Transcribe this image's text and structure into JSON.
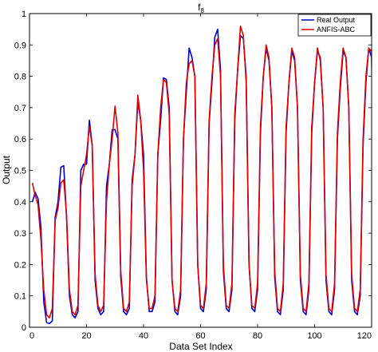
{
  "chart_data": {
    "type": "line",
    "title": "f",
    "title_subscript": "8",
    "xlabel": "Data Set Index",
    "ylabel": "Output",
    "xlim": [
      0,
      120
    ],
    "ylim": [
      0,
      1
    ],
    "xticks": [
      0,
      20,
      40,
      60,
      80,
      100,
      120
    ],
    "yticks": [
      0,
      0.1,
      0.2,
      0.3,
      0.4,
      0.5,
      0.6,
      0.7,
      0.8,
      0.9,
      1
    ],
    "xtick_labels": [
      "0",
      "20",
      "40",
      "60",
      "80",
      "100",
      "120"
    ],
    "ytick_labels": [
      "0",
      "0.1",
      "0.2",
      "0.3",
      "0.4",
      "0.5",
      "0.6",
      "0.7",
      "0.8",
      "0.9",
      "1"
    ],
    "grid": false,
    "legend_position": "top-right",
    "series": [
      {
        "name": "Real Output",
        "color": "#0000cc",
        "points": [
          [
            1,
            0.4
          ],
          [
            2,
            0.43
          ],
          [
            3,
            0.41
          ],
          [
            4,
            0.32
          ],
          [
            5,
            0.08
          ],
          [
            6,
            0.015
          ],
          [
            7,
            0.012
          ],
          [
            8,
            0.02
          ],
          [
            9,
            0.35
          ],
          [
            10,
            0.4
          ],
          [
            11,
            0.51
          ],
          [
            12,
            0.515
          ],
          [
            13,
            0.35
          ],
          [
            14,
            0.1
          ],
          [
            15,
            0.04
          ],
          [
            16,
            0.03
          ],
          [
            17,
            0.05
          ],
          [
            18,
            0.5
          ],
          [
            19,
            0.52
          ],
          [
            20,
            0.52
          ],
          [
            21,
            0.66
          ],
          [
            22,
            0.58
          ],
          [
            23,
            0.15
          ],
          [
            24,
            0.06
          ],
          [
            25,
            0.04
          ],
          [
            26,
            0.05
          ],
          [
            27,
            0.45
          ],
          [
            28,
            0.52
          ],
          [
            29,
            0.63
          ],
          [
            30,
            0.63
          ],
          [
            31,
            0.6
          ],
          [
            32,
            0.16
          ],
          [
            33,
            0.05
          ],
          [
            34,
            0.04
          ],
          [
            35,
            0.06
          ],
          [
            36,
            0.47
          ],
          [
            37,
            0.55
          ],
          [
            38,
            0.72
          ],
          [
            39,
            0.66
          ],
          [
            40,
            0.55
          ],
          [
            41,
            0.16
          ],
          [
            42,
            0.05
          ],
          [
            43,
            0.05
          ],
          [
            44,
            0.08
          ],
          [
            45,
            0.55
          ],
          [
            46,
            0.66
          ],
          [
            47,
            0.795
          ],
          [
            48,
            0.79
          ],
          [
            49,
            0.7
          ],
          [
            50,
            0.15
          ],
          [
            51,
            0.05
          ],
          [
            52,
            0.04
          ],
          [
            53,
            0.1
          ],
          [
            54,
            0.6
          ],
          [
            55,
            0.75
          ],
          [
            56,
            0.89
          ],
          [
            57,
            0.86
          ],
          [
            58,
            0.8
          ],
          [
            59,
            0.2
          ],
          [
            60,
            0.06
          ],
          [
            61,
            0.05
          ],
          [
            62,
            0.12
          ],
          [
            63,
            0.65
          ],
          [
            64,
            0.78
          ],
          [
            65,
            0.925
          ],
          [
            66,
            0.95
          ],
          [
            67,
            0.82
          ],
          [
            68,
            0.18
          ],
          [
            69,
            0.06
          ],
          [
            70,
            0.05
          ],
          [
            71,
            0.12
          ],
          [
            72,
            0.66
          ],
          [
            73,
            0.82
          ],
          [
            74,
            0.93
          ],
          [
            75,
            0.92
          ],
          [
            76,
            0.8
          ],
          [
            77,
            0.2
          ],
          [
            78,
            0.06
          ],
          [
            79,
            0.05
          ],
          [
            80,
            0.12
          ],
          [
            81,
            0.62
          ],
          [
            82,
            0.8
          ],
          [
            83,
            0.89
          ],
          [
            84,
            0.85
          ],
          [
            85,
            0.7
          ],
          [
            86,
            0.16
          ],
          [
            87,
            0.05
          ],
          [
            88,
            0.04
          ],
          [
            89,
            0.12
          ],
          [
            90,
            0.62
          ],
          [
            91,
            0.78
          ],
          [
            92,
            0.88
          ],
          [
            93,
            0.85
          ],
          [
            94,
            0.7
          ],
          [
            95,
            0.15
          ],
          [
            96,
            0.05
          ],
          [
            97,
            0.04
          ],
          [
            98,
            0.12
          ],
          [
            99,
            0.62
          ],
          [
            100,
            0.78
          ],
          [
            101,
            0.88
          ],
          [
            102,
            0.86
          ],
          [
            103,
            0.7
          ],
          [
            104,
            0.15
          ],
          [
            105,
            0.05
          ],
          [
            106,
            0.04
          ],
          [
            107,
            0.12
          ],
          [
            108,
            0.6
          ],
          [
            109,
            0.76
          ],
          [
            110,
            0.88
          ],
          [
            111,
            0.86
          ],
          [
            112,
            0.7
          ],
          [
            113,
            0.15
          ],
          [
            114,
            0.05
          ],
          [
            115,
            0.04
          ],
          [
            116,
            0.1
          ],
          [
            117,
            0.58
          ],
          [
            118,
            0.78
          ],
          [
            119,
            0.89
          ],
          [
            120,
            0.86
          ],
          [
            121,
            0.2
          ]
        ]
      },
      {
        "name": "ANFIS-ABC",
        "color": "#dd0000",
        "points": [
          [
            1,
            0.46
          ],
          [
            2,
            0.42
          ],
          [
            3,
            0.39
          ],
          [
            4,
            0.28
          ],
          [
            5,
            0.12
          ],
          [
            6,
            0.04
          ],
          [
            7,
            0.03
          ],
          [
            8,
            0.06
          ],
          [
            9,
            0.34
          ],
          [
            10,
            0.38
          ],
          [
            11,
            0.46
          ],
          [
            12,
            0.47
          ],
          [
            13,
            0.36
          ],
          [
            14,
            0.12
          ],
          [
            15,
            0.05
          ],
          [
            16,
            0.04
          ],
          [
            17,
            0.07
          ],
          [
            18,
            0.45
          ],
          [
            19,
            0.5
          ],
          [
            20,
            0.55
          ],
          [
            21,
            0.64
          ],
          [
            22,
            0.58
          ],
          [
            23,
            0.17
          ],
          [
            24,
            0.07
          ],
          [
            25,
            0.05
          ],
          [
            26,
            0.07
          ],
          [
            27,
            0.4
          ],
          [
            28,
            0.52
          ],
          [
            29,
            0.6
          ],
          [
            30,
            0.705
          ],
          [
            31,
            0.62
          ],
          [
            32,
            0.18
          ],
          [
            33,
            0.06
          ],
          [
            34,
            0.05
          ],
          [
            35,
            0.08
          ],
          [
            36,
            0.45
          ],
          [
            37,
            0.55
          ],
          [
            38,
            0.74
          ],
          [
            39,
            0.66
          ],
          [
            40,
            0.5
          ],
          [
            41,
            0.15
          ],
          [
            42,
            0.06
          ],
          [
            43,
            0.06
          ],
          [
            44,
            0.1
          ],
          [
            45,
            0.55
          ],
          [
            46,
            0.7
          ],
          [
            47,
            0.79
          ],
          [
            48,
            0.78
          ],
          [
            49,
            0.68
          ],
          [
            50,
            0.15
          ],
          [
            51,
            0.06
          ],
          [
            52,
            0.05
          ],
          [
            53,
            0.12
          ],
          [
            54,
            0.6
          ],
          [
            55,
            0.78
          ],
          [
            56,
            0.84
          ],
          [
            57,
            0.85
          ],
          [
            58,
            0.8
          ],
          [
            59,
            0.2
          ],
          [
            60,
            0.07
          ],
          [
            61,
            0.06
          ],
          [
            62,
            0.14
          ],
          [
            63,
            0.66
          ],
          [
            64,
            0.8
          ],
          [
            65,
            0.9
          ],
          [
            66,
            0.92
          ],
          [
            67,
            0.8
          ],
          [
            68,
            0.2
          ],
          [
            69,
            0.07
          ],
          [
            70,
            0.06
          ],
          [
            71,
            0.14
          ],
          [
            72,
            0.68
          ],
          [
            73,
            0.82
          ],
          [
            74,
            0.96
          ],
          [
            75,
            0.93
          ],
          [
            76,
            0.78
          ],
          [
            77,
            0.2
          ],
          [
            78,
            0.07
          ],
          [
            79,
            0.06
          ],
          [
            80,
            0.14
          ],
          [
            81,
            0.64
          ],
          [
            82,
            0.8
          ],
          [
            83,
            0.9
          ],
          [
            84,
            0.86
          ],
          [
            85,
            0.7
          ],
          [
            86,
            0.18
          ],
          [
            87,
            0.06
          ],
          [
            88,
            0.05
          ],
          [
            89,
            0.14
          ],
          [
            90,
            0.64
          ],
          [
            91,
            0.78
          ],
          [
            92,
            0.89
          ],
          [
            93,
            0.86
          ],
          [
            94,
            0.7
          ],
          [
            95,
            0.17
          ],
          [
            96,
            0.06
          ],
          [
            97,
            0.05
          ],
          [
            98,
            0.14
          ],
          [
            99,
            0.64
          ],
          [
            100,
            0.78
          ],
          [
            101,
            0.89
          ],
          [
            102,
            0.85
          ],
          [
            103,
            0.7
          ],
          [
            104,
            0.17
          ],
          [
            105,
            0.06
          ],
          [
            106,
            0.05
          ],
          [
            107,
            0.14
          ],
          [
            108,
            0.62
          ],
          [
            109,
            0.78
          ],
          [
            110,
            0.89
          ],
          [
            111,
            0.86
          ],
          [
            112,
            0.7
          ],
          [
            113,
            0.17
          ],
          [
            114,
            0.06
          ],
          [
            115,
            0.05
          ],
          [
            116,
            0.12
          ],
          [
            117,
            0.6
          ],
          [
            118,
            0.8
          ],
          [
            119,
            0.89
          ],
          [
            120,
            0.88
          ],
          [
            121,
            0.22
          ]
        ]
      }
    ]
  }
}
